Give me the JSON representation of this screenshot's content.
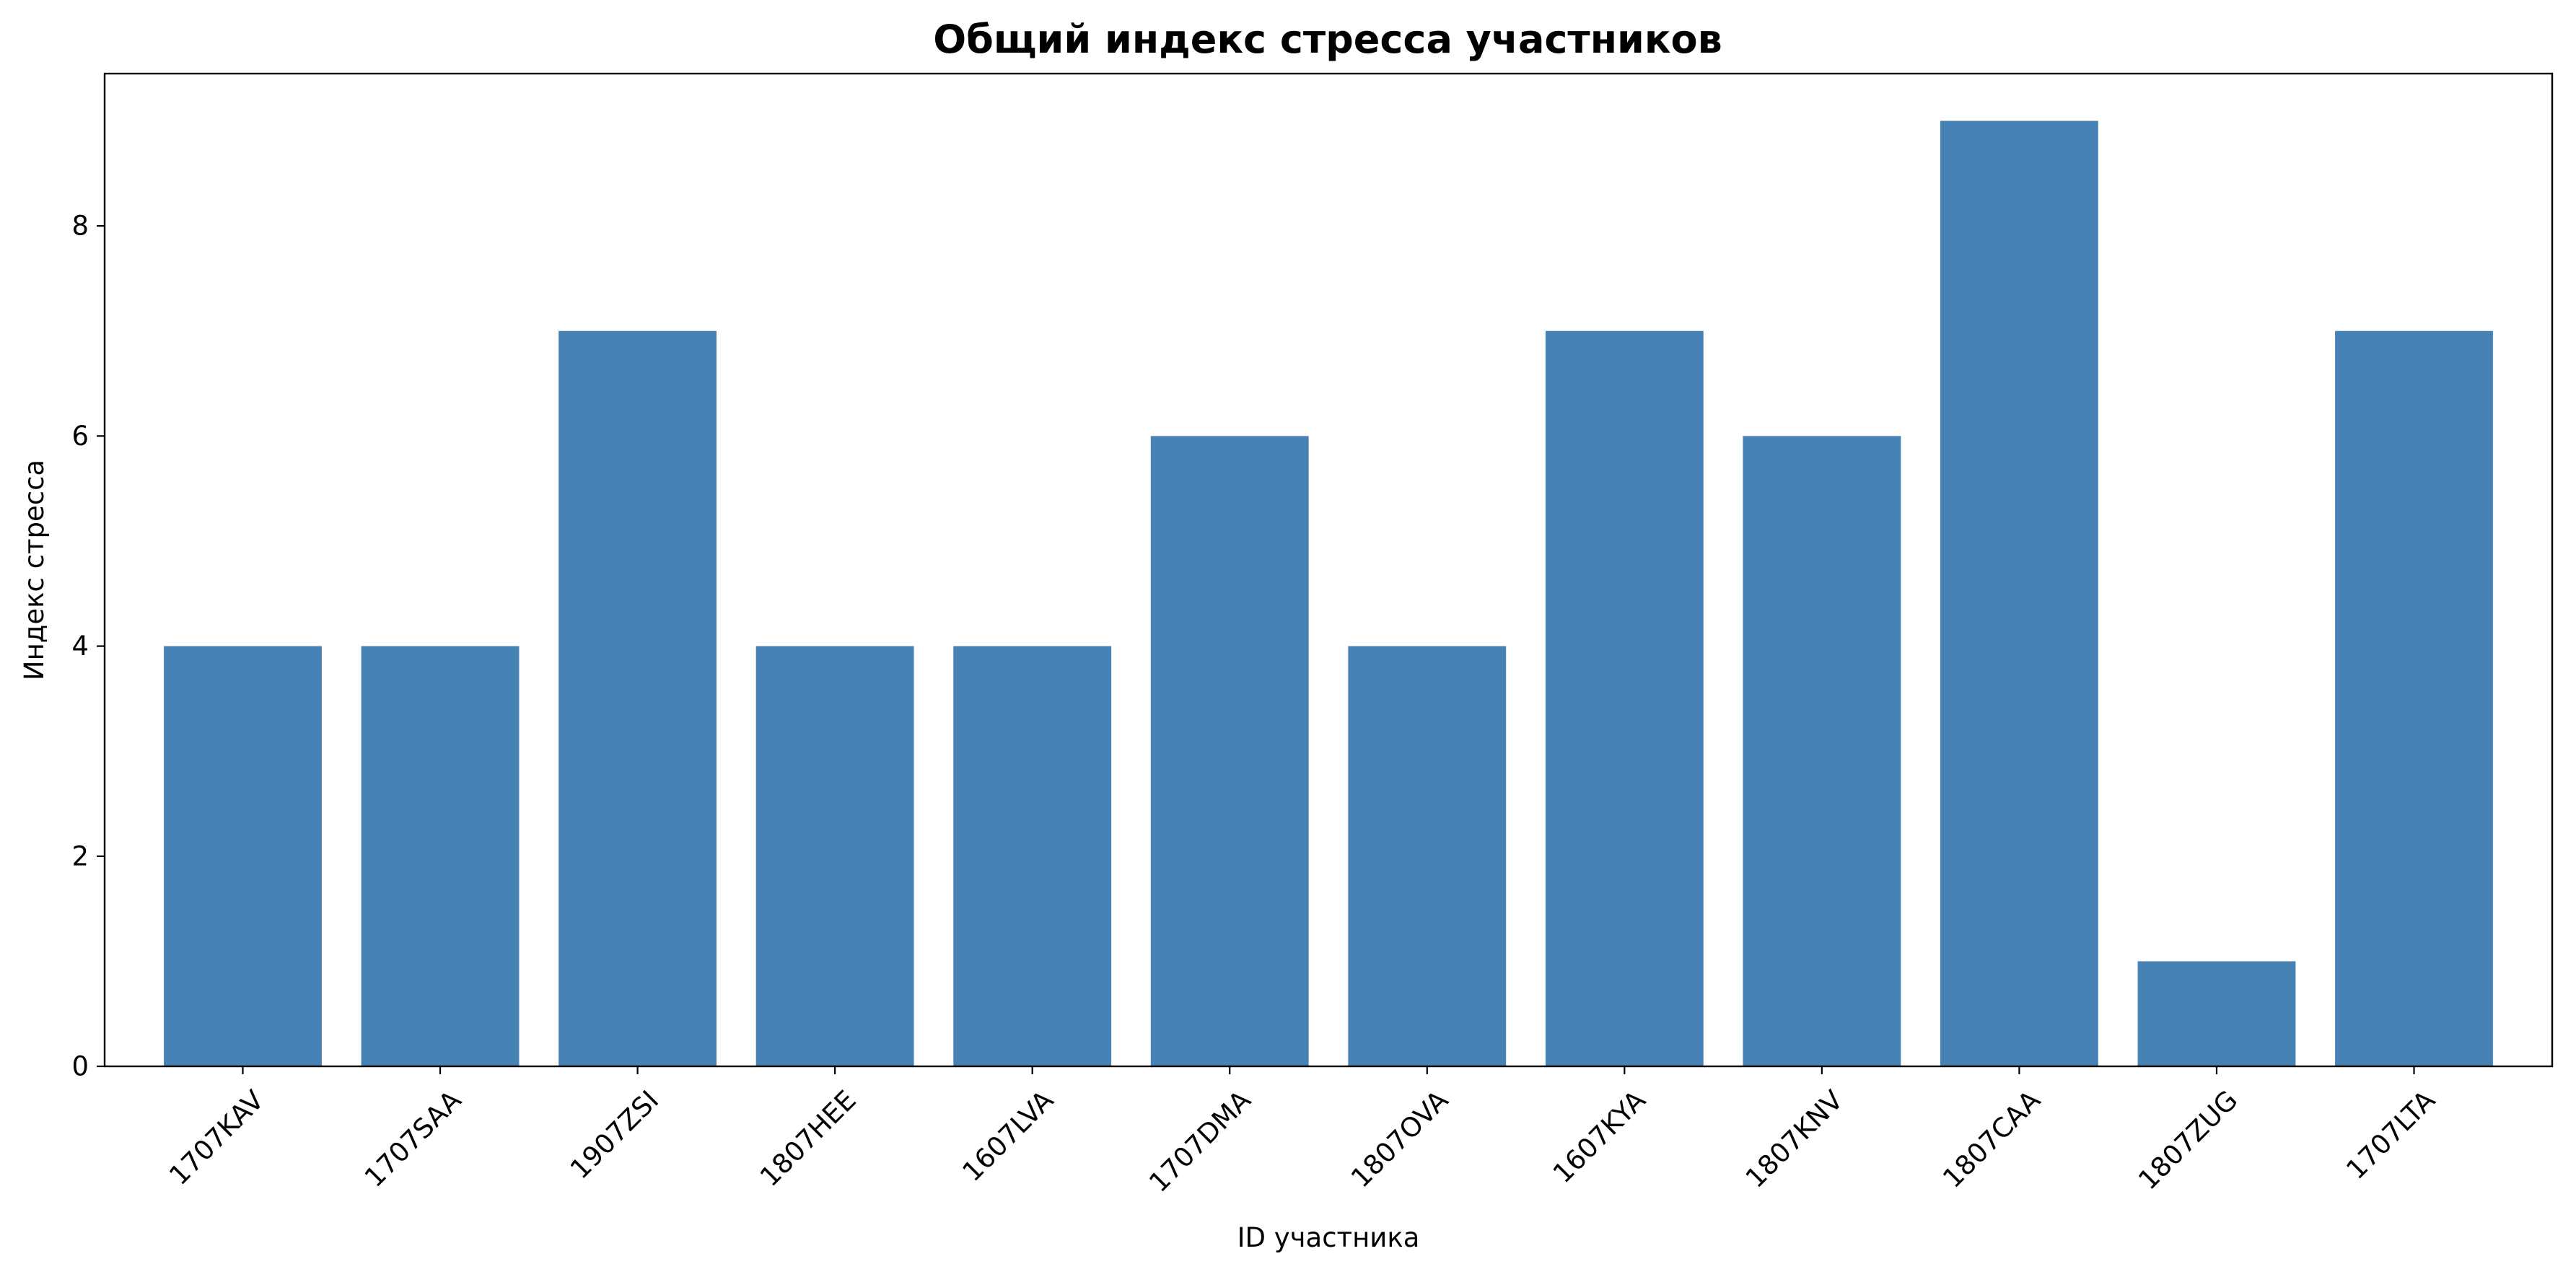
{
  "chart_data": {
    "type": "bar",
    "title": "Общий индекс стресса участников",
    "xlabel": "ID участника",
    "ylabel": "Индекс стресса",
    "categories": [
      "1707KAV",
      "1707SAA",
      "1907ZSI",
      "1807HEE",
      "1607LVA",
      "1707DMA",
      "1807OVA",
      "1607KYA",
      "1807KNV",
      "1807CAA",
      "1807ZUG",
      "1707LTA"
    ],
    "values": [
      4,
      4,
      7,
      4,
      4,
      6,
      4,
      7,
      6,
      9,
      1,
      7
    ],
    "ylim": [
      0,
      9.45
    ],
    "yticks": [
      0,
      2,
      4,
      6,
      8
    ],
    "grid": false,
    "bar_color": "#4682b4"
  }
}
